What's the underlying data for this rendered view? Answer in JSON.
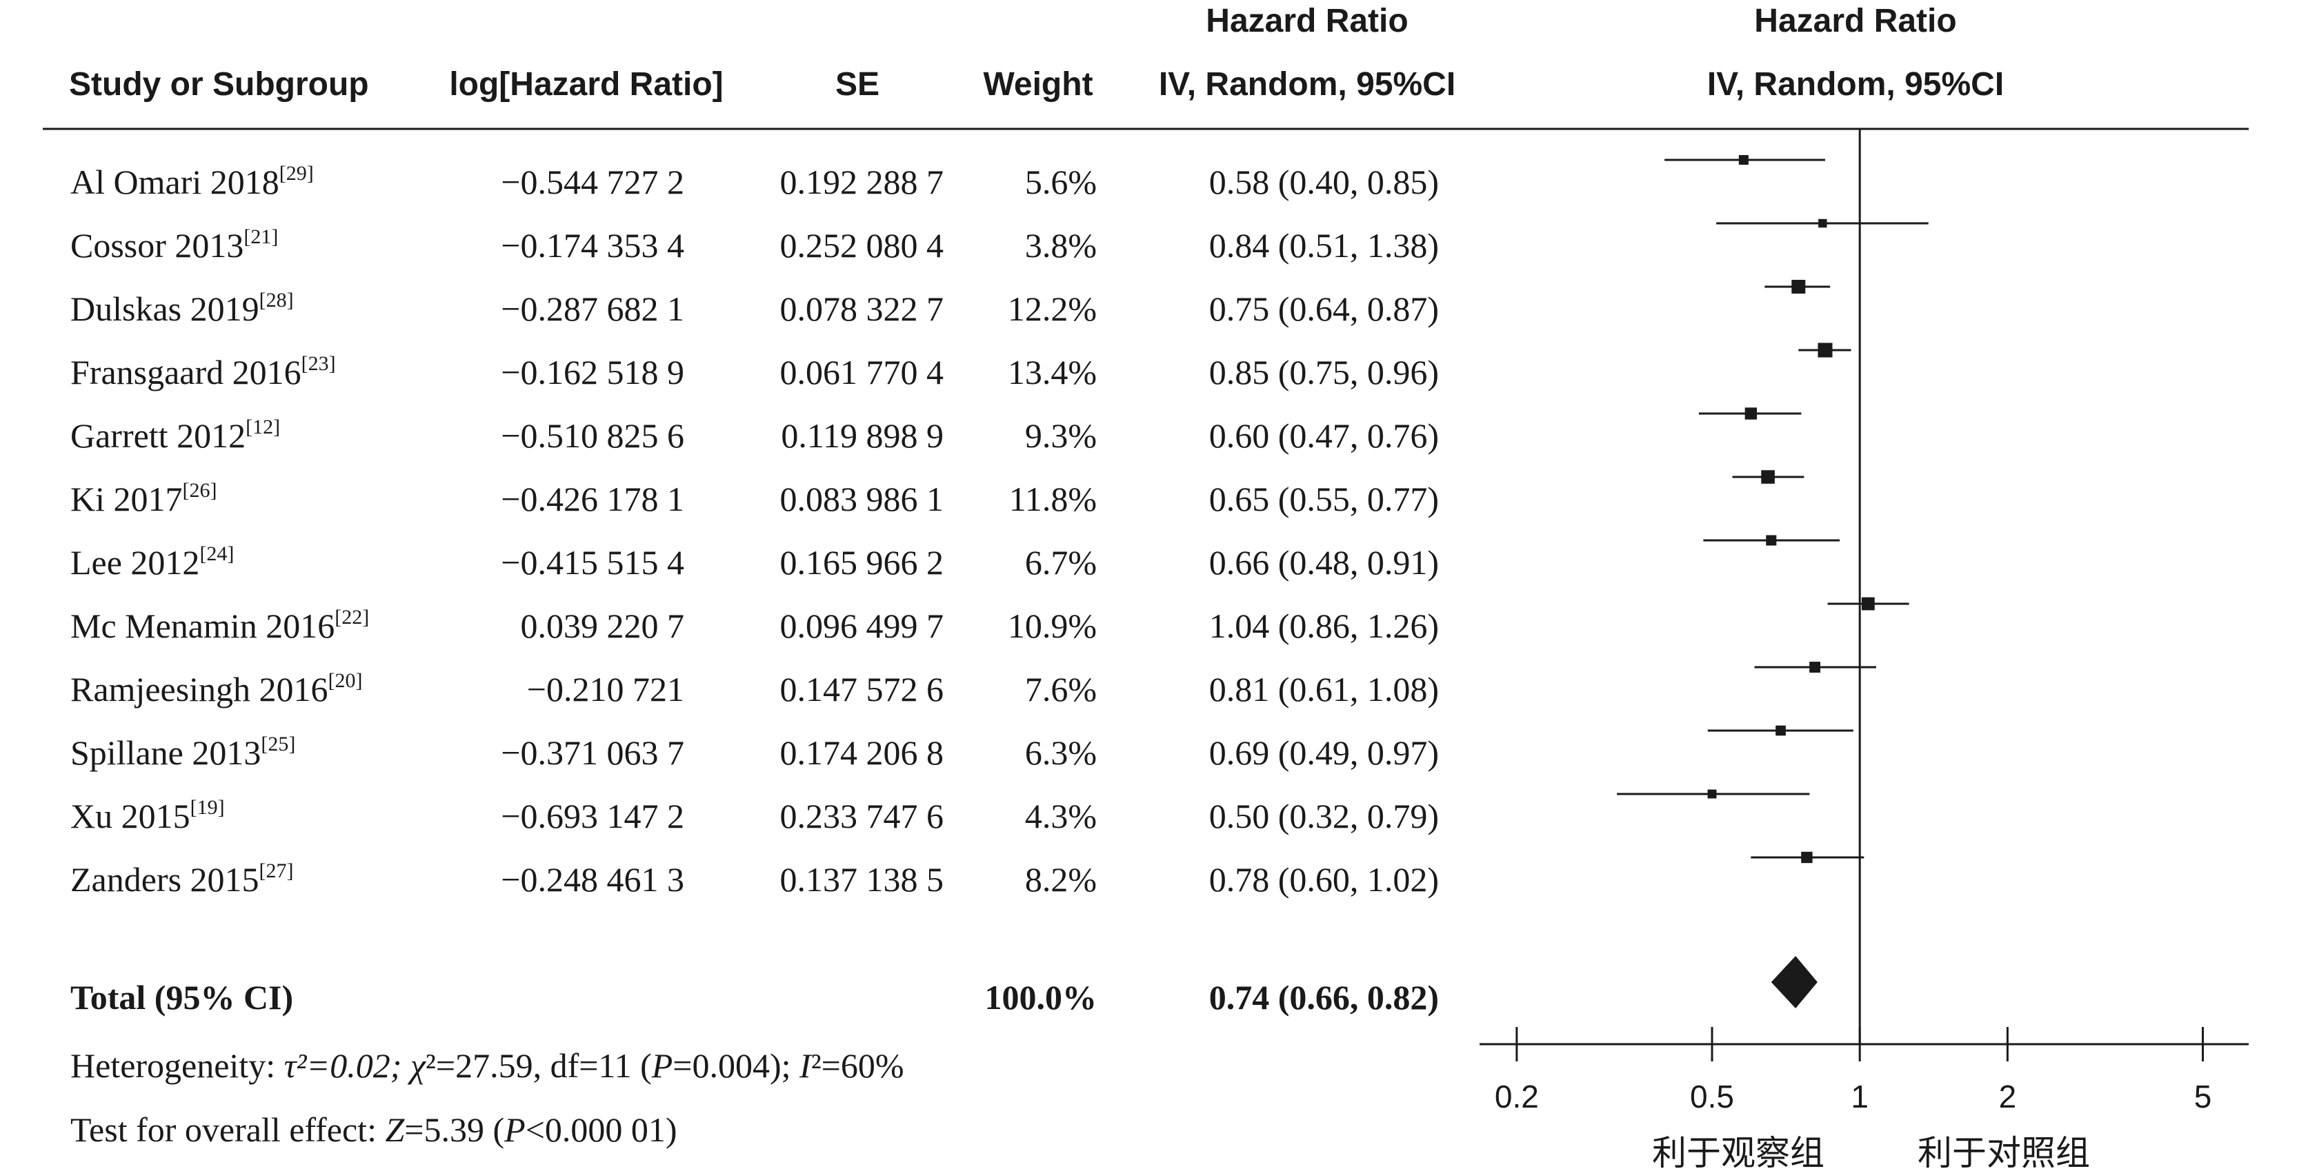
{
  "chart_data": {
    "type": "forest",
    "columns": {
      "study": "Study or Subgroup",
      "loghr": "log[Hazard Ratio]",
      "se": "SE",
      "weight": "Weight",
      "hr_top": "Hazard Ratio",
      "hr_bottom": "IV, Random, 95%CI",
      "plot_top": "Hazard Ratio",
      "plot_bottom": "IV, Random, 95%CI"
    },
    "studies": [
      {
        "name": "Al Omari 2018",
        "ref": "[29]",
        "loghr": "−0.544 727 2",
        "se": "0.192 288 7",
        "weight": "5.6%",
        "hr_text": "0.58 (0.40, 0.85)",
        "hr": 0.58,
        "lo": 0.4,
        "hi": 0.85,
        "w": 5.6
      },
      {
        "name": "Cossor 2013",
        "ref": "[21]",
        "loghr": "−0.174 353 4",
        "se": "0.252 080 4",
        "weight": "3.8%",
        "hr_text": "0.84 (0.51, 1.38)",
        "hr": 0.84,
        "lo": 0.51,
        "hi": 1.38,
        "w": 3.8
      },
      {
        "name": "Dulskas 2019",
        "ref": "[28]",
        "loghr": "−0.287 682 1",
        "se": "0.078 322 7",
        "weight": "12.2%",
        "hr_text": "0.75 (0.64, 0.87)",
        "hr": 0.75,
        "lo": 0.64,
        "hi": 0.87,
        "w": 12.2
      },
      {
        "name": "Fransgaard 2016",
        "ref": "[23]",
        "loghr": "−0.162 518 9",
        "se": "0.061 770 4",
        "weight": "13.4%",
        "hr_text": "0.85 (0.75, 0.96)",
        "hr": 0.85,
        "lo": 0.75,
        "hi": 0.96,
        "w": 13.4
      },
      {
        "name": "Garrett  2012",
        "ref": "[12]",
        "loghr": "−0.510 825 6",
        "se": "0.119 898 9",
        "weight": "9.3%",
        "hr_text": "0.60 (0.47, 0.76)",
        "hr": 0.6,
        "lo": 0.47,
        "hi": 0.76,
        "w": 9.3
      },
      {
        "name": "Ki 2017",
        "ref": "[26]",
        "loghr": "−0.426 178 1",
        "se": "0.083 986 1",
        "weight": "11.8%",
        "hr_text": "0.65 (0.55, 0.77)",
        "hr": 0.65,
        "lo": 0.55,
        "hi": 0.77,
        "w": 11.8
      },
      {
        "name": "Lee 2012",
        "ref": "[24]",
        "loghr": "−0.415 515 4",
        "se": "0.165 966 2",
        "weight": "6.7%",
        "hr_text": "0.66 (0.48, 0.91)",
        "hr": 0.66,
        "lo": 0.48,
        "hi": 0.91,
        "w": 6.7
      },
      {
        "name": "Mc Menamin 2016",
        "ref": "[22]",
        "loghr": "0.039 220 7",
        "se": "0.096 499 7",
        "weight": "10.9%",
        "hr_text": "1.04 (0.86, 1.26)",
        "hr": 1.04,
        "lo": 0.86,
        "hi": 1.26,
        "w": 10.9
      },
      {
        "name": "Ramjeesingh 2016",
        "ref": "[20]",
        "loghr": "−0.210 721",
        "se": "0.147 572 6",
        "weight": "7.6%",
        "hr_text": "0.81 (0.61, 1.08)",
        "hr": 0.81,
        "lo": 0.61,
        "hi": 1.08,
        "w": 7.6
      },
      {
        "name": "Spillane 2013",
        "ref": "[25]",
        "loghr": "−0.371 063 7",
        "se": "0.174 206 8",
        "weight": "6.3%",
        "hr_text": "0.69 (0.49, 0.97)",
        "hr": 0.69,
        "lo": 0.49,
        "hi": 0.97,
        "w": 6.3
      },
      {
        "name": "Xu 2015",
        "ref": "[19]",
        "loghr": "−0.693 147 2",
        "se": "0.233 747 6",
        "weight": "4.3%",
        "hr_text": "0.50 (0.32, 0.79)",
        "hr": 0.5,
        "lo": 0.32,
        "hi": 0.79,
        "w": 4.3
      },
      {
        "name": "Zanders 2015",
        "ref": "[27]",
        "loghr": "−0.248 461 3",
        "se": "0.137 138 5",
        "weight": "8.2%",
        "hr_text": "0.78 (0.60, 1.02)",
        "hr": 0.78,
        "lo": 0.6,
        "hi": 1.02,
        "w": 8.2
      }
    ],
    "total": {
      "label": "Total (95% CI)",
      "weight": "100.0%",
      "hr_text": "0.74 (0.66, 0.82)",
      "hr": 0.74,
      "lo": 0.66,
      "hi": 0.82
    },
    "heterogeneity": {
      "prefix": "Heterogeneity: ",
      "tau2": "τ²=0.02; ",
      "chi2_sym": "χ",
      "chi2_rest": "²=27.59, df=11 (",
      "p": "P",
      "p_rest": "=0.004); ",
      "i2_sym": "I",
      "i2_rest": "²=60%"
    },
    "overall": {
      "prefix": "Test for overall effect: ",
      "z": "Z",
      "z_rest": "=5.39 (",
      "p": "P",
      "p_rest": "<0.000 01)"
    },
    "x_axis": {
      "scale": "log",
      "ticks": [
        0.2,
        0.5,
        1,
        2,
        5
      ],
      "tick_labels": [
        "0.2",
        "0.5",
        "1",
        "2",
        "5"
      ],
      "range": [
        0.168,
        6.2
      ],
      "reference_line": 1
    },
    "favor": {
      "left": "利于观察组",
      "right": "利于对照组"
    }
  }
}
